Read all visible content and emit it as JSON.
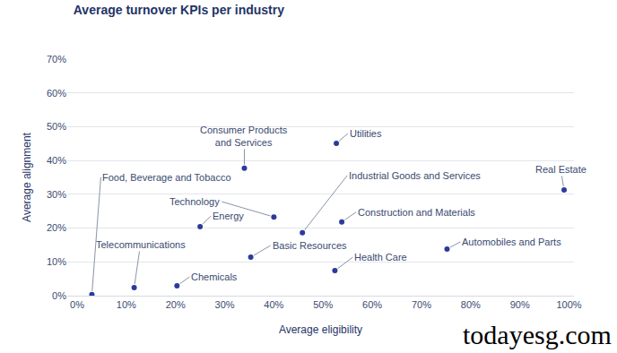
{
  "chart_data": {
    "type": "scatter",
    "title": "Average turnover KPIs per industry",
    "x_label": "Average eligibility",
    "y_label": "Average alignment",
    "watermark": "todayesg.com",
    "color": "#2b3a9c",
    "marker": "circle",
    "grid": true,
    "xlim": [
      -2,
      101
    ],
    "ylim": [
      0,
      70
    ],
    "xticks": [
      {
        "value": 0,
        "label": "0%"
      },
      {
        "value": 10,
        "label": "10%"
      },
      {
        "value": 20,
        "label": "20%"
      },
      {
        "value": 30,
        "label": "30%"
      },
      {
        "value": 40,
        "label": "40%"
      },
      {
        "value": 50,
        "label": "50%"
      },
      {
        "value": 60,
        "label": "60%"
      },
      {
        "value": 70,
        "label": "70%"
      },
      {
        "value": 80,
        "label": "80%"
      },
      {
        "value": 90,
        "label": "90%"
      },
      {
        "value": 100,
        "label": "100%"
      }
    ],
    "yticks": [
      {
        "value": 0,
        "label": "0%"
      },
      {
        "value": 10,
        "label": "10%"
      },
      {
        "value": 20,
        "label": "20%"
      },
      {
        "value": 30,
        "label": "30%"
      },
      {
        "value": 40,
        "label": "40%"
      },
      {
        "value": 50,
        "label": "50%"
      },
      {
        "value": 60,
        "label": "60%"
      },
      {
        "value": 70,
        "label": "70%"
      }
    ],
    "labels": [
      "Food, Beverage and Tobacco",
      "Telecommunications",
      "Chemicals",
      "Energy",
      "Technology",
      "Consumer Products and Services",
      "Basic Resources",
      "Industrial Goods and Services",
      "Utilities",
      "Construction and Materials",
      "Health Care",
      "Automobiles and Parts",
      "Real Estate"
    ],
    "x": [
      3,
      11.6,
      20.3,
      25,
      40,
      34,
      35.3,
      45.8,
      52.7,
      53.8,
      52.4,
      75.2,
      99
    ],
    "y": [
      0.3,
      2.4,
      2.9,
      20.4,
      23.3,
      37.7,
      11.4,
      18.6,
      45.1,
      21.8,
      7.4,
      13.8,
      31.3
    ]
  }
}
